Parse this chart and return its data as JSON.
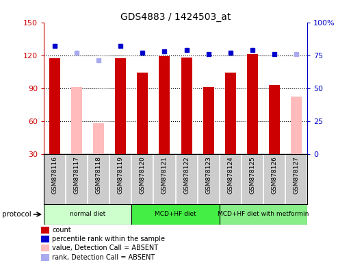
{
  "title": "GDS4883 / 1424503_at",
  "samples": [
    "GSM878116",
    "GSM878117",
    "GSM878118",
    "GSM878119",
    "GSM878120",
    "GSM878121",
    "GSM878122",
    "GSM878123",
    "GSM878124",
    "GSM878125",
    "GSM878126",
    "GSM878127"
  ],
  "count_values": [
    117,
    null,
    null,
    117,
    104,
    119,
    118,
    91,
    104,
    121,
    93,
    null
  ],
  "absent_value_values": [
    null,
    91,
    58,
    null,
    null,
    null,
    null,
    null,
    null,
    null,
    null,
    82
  ],
  "percentile_rank_values": [
    82,
    null,
    null,
    82,
    77,
    78,
    79,
    76,
    77,
    79,
    76,
    null
  ],
  "absent_rank_values": [
    null,
    77,
    71,
    null,
    null,
    null,
    null,
    null,
    null,
    null,
    null,
    76
  ],
  "ylim_left": [
    30,
    150
  ],
  "ylim_right": [
    0,
    100
  ],
  "yticks_left": [
    30,
    60,
    90,
    120,
    150
  ],
  "yticks_right": [
    0,
    25,
    50,
    75,
    100
  ],
  "yticklabels_right": [
    "0",
    "25",
    "50",
    "75",
    "100%"
  ],
  "bar_width": 0.5,
  "protocol_groups": [
    {
      "label": "normal diet",
      "indices": [
        0,
        1,
        2,
        3
      ],
      "color": "#ccffcc"
    },
    {
      "label": "MCD+HF diet",
      "indices": [
        4,
        5,
        6,
        7
      ],
      "color": "#44ee44"
    },
    {
      "label": "MCD+HF diet with metformin",
      "indices": [
        8,
        9,
        10,
        11
      ],
      "color": "#88ee88"
    }
  ],
  "color_dark_red": "#cc0000",
  "color_pink": "#ffbbbb",
  "color_blue": "#0000cc",
  "color_light_blue": "#aaaaee",
  "bg_plot": "#ffffff",
  "bg_samples": "#cccccc",
  "legend_items": [
    {
      "color": "#cc0000",
      "label": "count"
    },
    {
      "color": "#0000cc",
      "label": "percentile rank within the sample"
    },
    {
      "color": "#ffbbbb",
      "label": "value, Detection Call = ABSENT"
    },
    {
      "color": "#aaaaee",
      "label": "rank, Detection Call = ABSENT"
    }
  ]
}
